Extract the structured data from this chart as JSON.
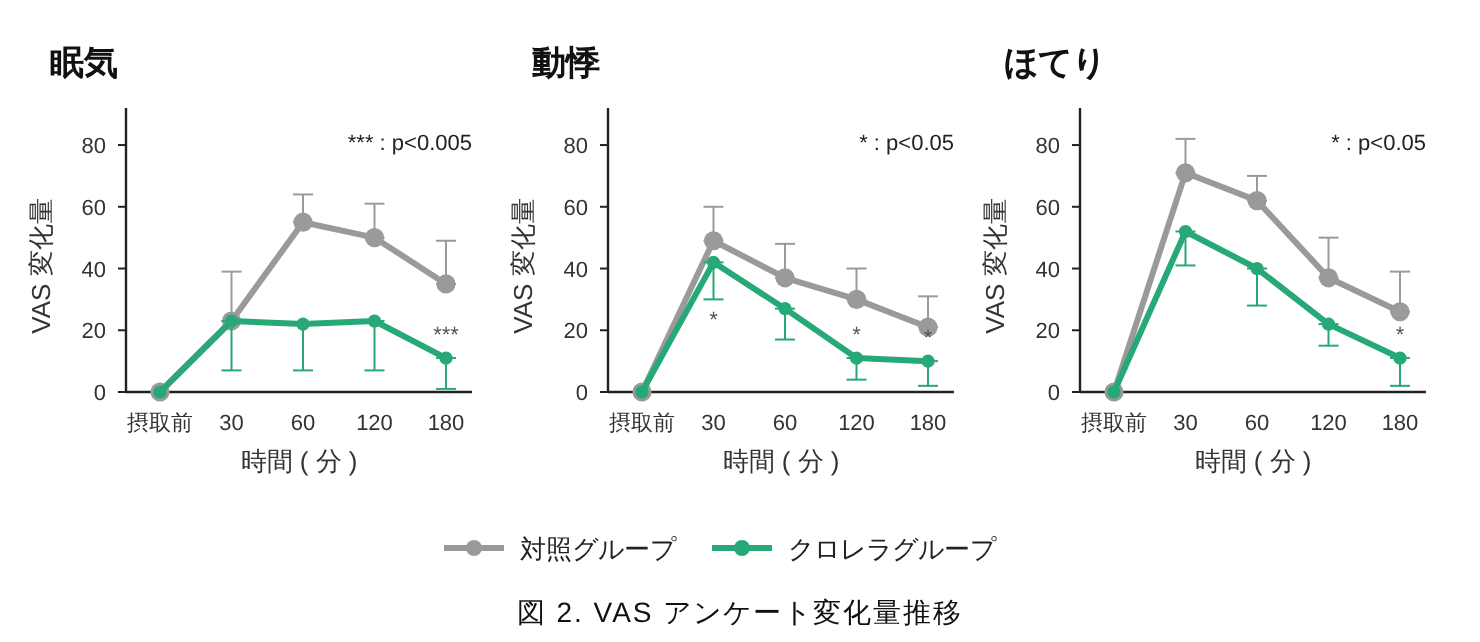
{
  "chart_data": [
    {
      "type": "line",
      "title": "眠気",
      "xlabel": "時間 ( 分 )",
      "ylabel": "VAS 変化量",
      "categories": [
        "摂取前",
        "30",
        "60",
        "120",
        "180"
      ],
      "ylim": [
        0,
        92
      ],
      "yticks": [
        0,
        20,
        40,
        60,
        80
      ],
      "marker": "circle",
      "line_style": "solid",
      "grid": false,
      "legend": false,
      "series": [
        {
          "color": "#9a9a9a",
          "values": [
            0,
            23,
            55,
            50,
            35
          ],
          "errors": [
            null,
            [
              23,
              39
            ],
            [
              55,
              64
            ],
            [
              50,
              61
            ],
            [
              35,
              49
            ]
          ]
        },
        {
          "color": "#27a877",
          "values": [
            0,
            23,
            22,
            23,
            11
          ],
          "errors": [
            null,
            [
              7,
              23
            ],
            [
              7,
              22
            ],
            [
              7,
              23
            ],
            [
              1,
              11
            ]
          ]
        }
      ],
      "annotations": [
        "*** : p<0.005",
        {
          "text": "***",
          "x": "180",
          "y": 11
        }
      ]
    },
    {
      "type": "line",
      "title": "動悸",
      "xlabel": "時間 ( 分 )",
      "ylabel": "VAS 変化量",
      "categories": [
        "摂取前",
        "30",
        "60",
        "120",
        "180"
      ],
      "ylim": [
        0,
        92
      ],
      "yticks": [
        0,
        20,
        40,
        60,
        80
      ],
      "marker": "circle",
      "line_style": "solid",
      "grid": false,
      "legend": "bottom",
      "series": [
        {
          "name": "対照グループ",
          "color": "#9a9a9a",
          "values": [
            0,
            49,
            37,
            30,
            21
          ],
          "errors": [
            null,
            [
              49,
              60
            ],
            [
              37,
              48
            ],
            [
              30,
              40
            ],
            [
              21,
              31
            ]
          ]
        },
        {
          "name": "クロレラグループ",
          "color": "#27a877",
          "values": [
            0,
            42,
            27,
            11,
            10
          ],
          "errors": [
            null,
            [
              30,
              42
            ],
            [
              17,
              27
            ],
            [
              4,
              11
            ],
            [
              2,
              10
            ]
          ]
        }
      ],
      "annotations": [
        "* : p<0.05",
        "図 2. VAS アンケート変化量推移",
        {
          "text": "*",
          "x": "30",
          "y": 30
        },
        {
          "text": "*",
          "x": "120",
          "y": 11
        },
        {
          "text": "*",
          "x": "180",
          "y": 10
        }
      ]
    },
    {
      "type": "line",
      "title": "ほてり",
      "xlabel": "時間 ( 分 )",
      "ylabel": "VAS 変化量",
      "categories": [
        "摂取前",
        "30",
        "60",
        "120",
        "180"
      ],
      "ylim": [
        0,
        92
      ],
      "yticks": [
        0,
        20,
        40,
        60,
        80
      ],
      "marker": "circle",
      "line_style": "solid",
      "grid": false,
      "legend": false,
      "series": [
        {
          "color": "#9a9a9a",
          "values": [
            0,
            71,
            62,
            37,
            26
          ],
          "errors": [
            null,
            [
              71,
              82
            ],
            [
              62,
              70
            ],
            [
              37,
              50
            ],
            [
              26,
              39
            ]
          ]
        },
        {
          "color": "#27a877",
          "values": [
            0,
            52,
            40,
            22,
            11
          ],
          "errors": [
            null,
            [
              41,
              52
            ],
            [
              28,
              40
            ],
            [
              15,
              22
            ],
            [
              2,
              11
            ]
          ]
        }
      ],
      "annotations": [
        "* : p<0.05",
        {
          "text": "*",
          "x": "180",
          "y": 11
        }
      ]
    }
  ]
}
